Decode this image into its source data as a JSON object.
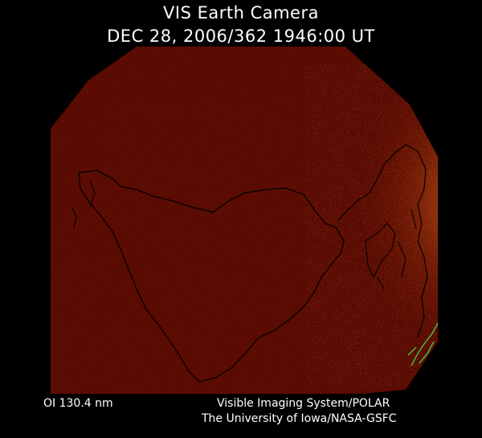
{
  "header": {
    "title": "VIS Earth Camera",
    "timestamp": "DEC 28, 2006/362 1946:00 UT"
  },
  "footer": {
    "wavelength": "OI  130.4 nm",
    "instrument": "Visible Imaging System/POLAR",
    "institution": "The University of Iowa/NASA-GSFC"
  },
  "colors": {
    "background": "#000000",
    "disk": "#5a0b02",
    "aurora": "#c45a12",
    "coastline": "#000000",
    "terminator": "#3fc43f"
  }
}
